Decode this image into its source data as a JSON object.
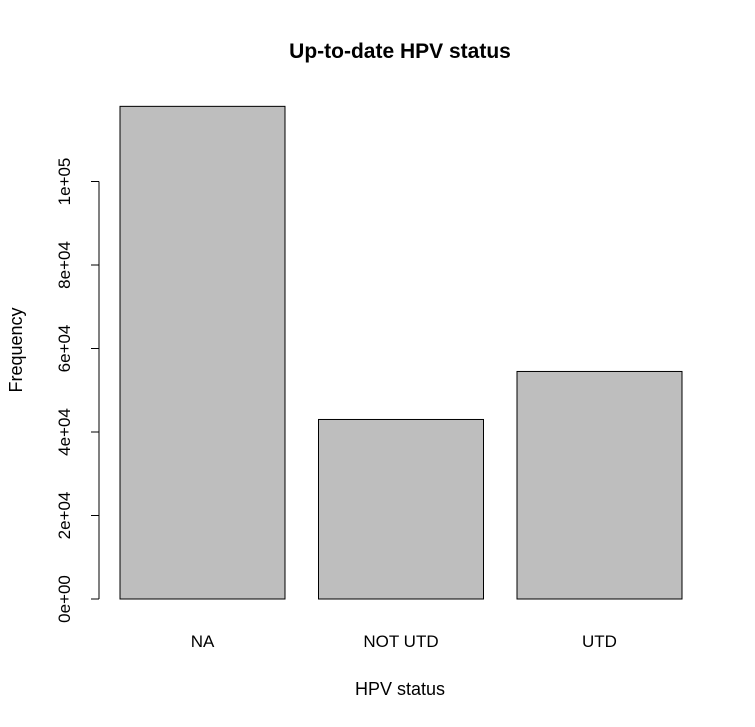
{
  "chart_data": {
    "type": "bar",
    "title": "Up-to-date HPV status",
    "xlabel": "HPV status",
    "ylabel": "Frequency",
    "categories": [
      "NA",
      "NOT UTD",
      "UTD"
    ],
    "values": [
      118000,
      43000,
      54500
    ],
    "ylim": [
      0,
      120000
    ],
    "yticks": [
      0,
      20000,
      40000,
      60000,
      80000,
      100000
    ],
    "ytick_labels": [
      "0e+00",
      "2e+04",
      "4e+04",
      "6e+04",
      "8e+04",
      "1e+05"
    ],
    "bar_color": "#bebebe",
    "grid": false
  }
}
